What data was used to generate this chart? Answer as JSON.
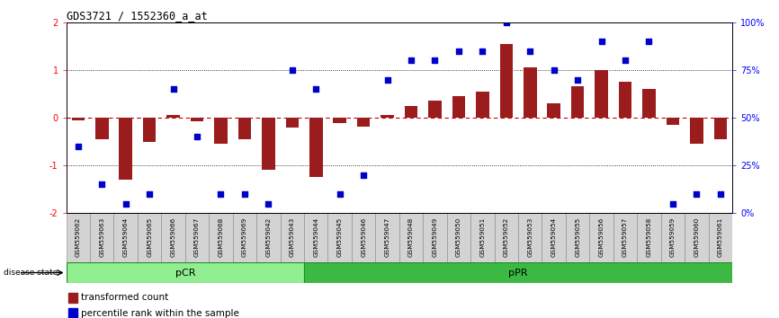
{
  "title": "GDS3721 / 1552360_a_at",
  "samples": [
    "GSM559062",
    "GSM559063",
    "GSM559064",
    "GSM559065",
    "GSM559066",
    "GSM559067",
    "GSM559068",
    "GSM559069",
    "GSM559042",
    "GSM559043",
    "GSM559044",
    "GSM559045",
    "GSM559046",
    "GSM559047",
    "GSM559048",
    "GSM559049",
    "GSM559050",
    "GSM559051",
    "GSM559052",
    "GSM559053",
    "GSM559054",
    "GSM559055",
    "GSM559056",
    "GSM559057",
    "GSM559058",
    "GSM559059",
    "GSM559060",
    "GSM559061"
  ],
  "bar_values": [
    -0.05,
    -0.45,
    -1.3,
    -0.5,
    0.05,
    -0.08,
    -0.55,
    -0.45,
    -1.1,
    -0.2,
    -1.25,
    -0.12,
    -0.18,
    0.05,
    0.25,
    0.35,
    0.45,
    0.55,
    1.55,
    1.05,
    0.3,
    0.65,
    1.0,
    0.75,
    0.6,
    -0.15,
    -0.55,
    -0.45
  ],
  "percentile_values": [
    35,
    15,
    5,
    10,
    65,
    40,
    10,
    10,
    5,
    75,
    65,
    10,
    20,
    70,
    80,
    80,
    85,
    85,
    100,
    85,
    75,
    70,
    90,
    80,
    90,
    5,
    10,
    10
  ],
  "pCR_count": 10,
  "pPR_count": 18,
  "ylim": [
    -2,
    2
  ],
  "y2lim": [
    0,
    100
  ],
  "bar_color": "#9B1C1C",
  "dot_color": "#0000CC",
  "zero_line_color": "#CC0000",
  "pCR_color": "#90EE90",
  "pPR_color": "#3CB943",
  "legend_red": "transformed count",
  "legend_blue": "percentile rank within the sample"
}
